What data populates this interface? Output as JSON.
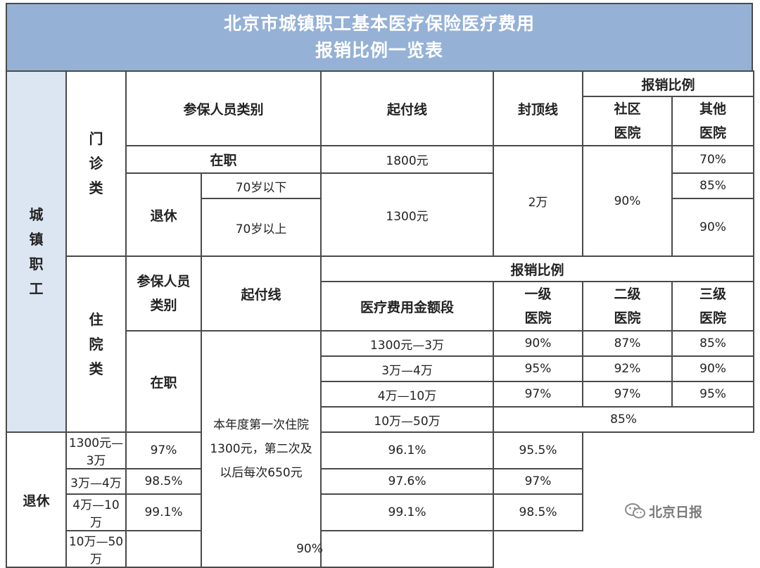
{
  "title": {
    "line1": "北京市城镇职工基本医疗保险医疗费用",
    "line2": "报销比例一览表"
  },
  "side_label": "城镇职工",
  "outpatient": {
    "label": "门诊类",
    "headers": {
      "category": "参保人员类别",
      "threshold": "起付线",
      "cap": "封顶线",
      "ratio": "报销比例",
      "community": {
        "line1": "社区",
        "line2": "医院"
      },
      "other": {
        "line1": "其他",
        "line2": "医院"
      }
    },
    "employed": {
      "label": "在职",
      "threshold": "1800元",
      "other": "70%"
    },
    "retired": {
      "label": "退休",
      "under70": {
        "label": "70岁以下",
        "other": "85%"
      },
      "over70": {
        "label": "70岁以上",
        "other": "90%"
      },
      "threshold": "1300元"
    },
    "cap": "2万",
    "community_ratio": "90%"
  },
  "inpatient": {
    "label": "住院类",
    "headers": {
      "category_line1": "参保人员",
      "category_line2": "类别",
      "threshold": "起付线",
      "ratio": "报销比例",
      "amount": "医疗费用金额段",
      "level1": {
        "line1": "一级",
        "line2": "医院"
      },
      "level2": {
        "line1": "二级",
        "line2": "医院"
      },
      "level3": {
        "line1": "三级",
        "line2": "医院"
      }
    },
    "threshold_note": "本年度第一次住院1300元，第二次及以后每次650元",
    "employed": {
      "label": "在职",
      "rows": [
        {
          "range": "1300元—3万",
          "l1": "90%",
          "l2": "87%",
          "l3": "85%"
        },
        {
          "range": "3万—4万",
          "l1": "95%",
          "l2": "92%",
          "l3": "90%"
        },
        {
          "range": "4万—10万",
          "l1": "97%",
          "l2": "97%",
          "l3": "95%"
        }
      ],
      "range_last": "10万—50万",
      "merged_last": "85%"
    },
    "retired": {
      "label": "退休",
      "rows": [
        {
          "range": "1300元—3万",
          "l1": "97%",
          "l2": "96.1%",
          "l3": "95.5%"
        },
        {
          "range": "3万—4万",
          "l1": "98.5%",
          "l2": "97.6%",
          "l3": "97%"
        },
        {
          "range": "4万—10万",
          "l1": "99.1%",
          "l2": "99.1%",
          "l3": "98.5%"
        }
      ],
      "range_last": "10万—50万",
      "merged_last": "90%"
    }
  },
  "watermark": {
    "text": "北京日报",
    "icon": "wechat-icon"
  },
  "colors": {
    "header_bg": "#95b1d6",
    "side_bg": "#dce6f2",
    "border": "#4a4a4a"
  }
}
